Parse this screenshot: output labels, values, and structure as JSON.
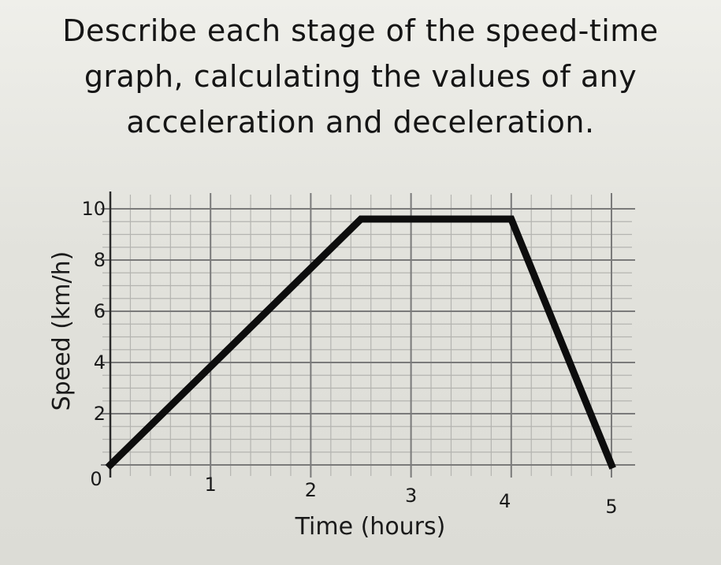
{
  "question": {
    "lines": [
      "Describe each stage of the speed-time",
      "graph, calculating the values of any",
      "acceleration and deceleration."
    ]
  },
  "chart_data": {
    "type": "line",
    "xlabel": "Time (hours)",
    "ylabel": "Speed (km/h)",
    "xlim": [
      0,
      5
    ],
    "ylim": [
      0,
      10
    ],
    "x_ticks": [
      "0",
      "1",
      "2",
      "3",
      "4",
      "5"
    ],
    "y_ticks": [
      "10",
      "8",
      "6",
      "4",
      "2"
    ],
    "grid": true,
    "series": [
      {
        "x": [
          0,
          2.5,
          4,
          5
        ],
        "y": [
          0,
          9.6,
          9.6,
          0
        ]
      }
    ]
  },
  "colors": {
    "line": "#0d0d0d",
    "grid_major": "#7a7a7a",
    "grid_minor": "#b4b4b0"
  }
}
